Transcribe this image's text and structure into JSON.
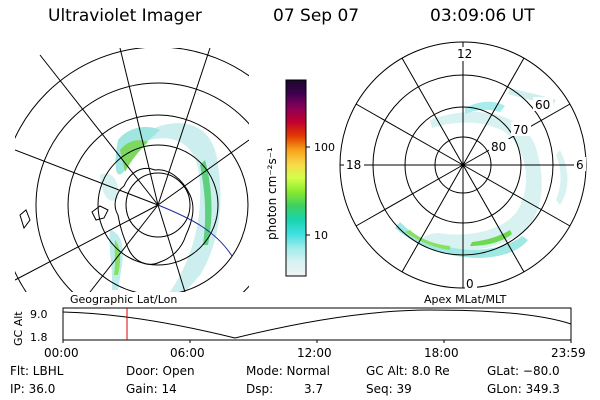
{
  "header": {
    "instrument": "Ultraviolet Imager",
    "date": "07 Sep 07",
    "time": "03:09:06 UT"
  },
  "colorbar": {
    "unit_label": "photon cm⁻²s⁻¹",
    "ticks": [
      "100",
      "10"
    ],
    "colors": [
      "#1a0a2a",
      "#400050",
      "#8b0058",
      "#c2002e",
      "#e13a00",
      "#f7a21a",
      "#f8d84a",
      "#d4ff4a",
      "#88e830",
      "#3cd060",
      "#18d4b0",
      "#40e0e0",
      "#a0ecec",
      "#d8f2f2",
      "#f0f4f4"
    ]
  },
  "left_map": {
    "caption": "Geographic Lat/Lon"
  },
  "right_map": {
    "caption": "Apex  MLat/MLT",
    "mlt_labels": {
      "top": "12",
      "left": "18",
      "right": "6",
      "bottom": "0"
    },
    "mlat_labels": [
      "60",
      "70",
      "80"
    ]
  },
  "altitude_plot": {
    "ylabel": "GC Alt",
    "yticks": [
      "9.0",
      "1.8"
    ],
    "xticks": [
      "00:00",
      "06:00",
      "12:00",
      "18:00",
      "23:59"
    ],
    "marker_time": "03:09"
  },
  "info": {
    "flt": "Flt: LBHL",
    "ip": "IP: 36.0",
    "door": "Door: Open",
    "gain": "Gain: 14",
    "mode_label": "Mode: Normal",
    "dsp_label": "Dsp:",
    "dsp_value": "3.7",
    "gc_alt": "GC Alt: 8.0 Re",
    "seq": "Seq: 39",
    "glat": "GLat: −80.0",
    "glon": "GLon: 349.3"
  }
}
